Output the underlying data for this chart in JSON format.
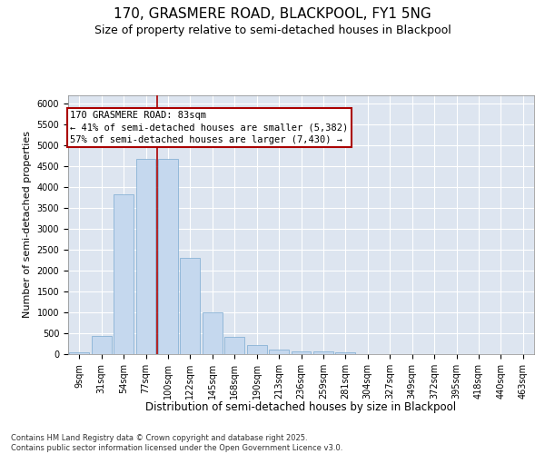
{
  "title1": "170, GRASMERE ROAD, BLACKPOOL, FY1 5NG",
  "title2": "Size of property relative to semi-detached houses in Blackpool",
  "xlabel": "Distribution of semi-detached houses by size in Blackpool",
  "ylabel": "Number of semi-detached properties",
  "categories": [
    "9sqm",
    "31sqm",
    "54sqm",
    "77sqm",
    "100sqm",
    "122sqm",
    "145sqm",
    "168sqm",
    "190sqm",
    "213sqm",
    "236sqm",
    "259sqm",
    "281sqm",
    "304sqm",
    "327sqm",
    "349sqm",
    "372sqm",
    "395sqm",
    "418sqm",
    "440sqm",
    "463sqm"
  ],
  "values": [
    50,
    430,
    3820,
    4680,
    4680,
    2300,
    1000,
    410,
    210,
    100,
    70,
    65,
    50,
    0,
    0,
    0,
    0,
    0,
    0,
    0,
    0
  ],
  "bar_color": "#c5d8ee",
  "bar_edge_color": "#7aaad0",
  "vline_x": 3.5,
  "vline_color": "#aa0000",
  "annotation_line1": "170 GRASMERE ROAD: 83sqm",
  "annotation_line2": "← 41% of semi-detached houses are smaller (5,382)",
  "annotation_line3": "57% of semi-detached houses are larger (7,430) →",
  "ylim": [
    0,
    6200
  ],
  "yticks": [
    0,
    500,
    1000,
    1500,
    2000,
    2500,
    3000,
    3500,
    4000,
    4500,
    5000,
    5500,
    6000
  ],
  "footer_text": "Contains HM Land Registry data © Crown copyright and database right 2025.\nContains public sector information licensed under the Open Government Licence v3.0.",
  "bg_color": "#dde5f0",
  "title1_fontsize": 11,
  "title2_fontsize": 9,
  "tick_fontsize": 7,
  "ylabel_fontsize": 8,
  "xlabel_fontsize": 8.5,
  "annot_fontsize": 7.5,
  "footer_fontsize": 6
}
